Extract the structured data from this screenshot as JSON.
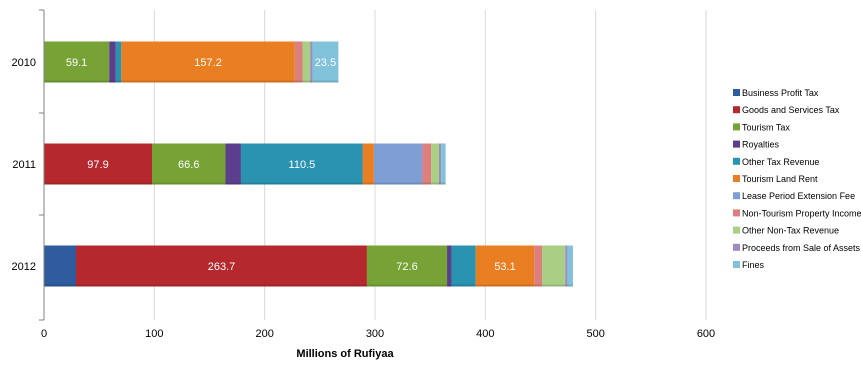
{
  "chart_data": {
    "type": "bar",
    "orientation": "horizontal",
    "stacked": true,
    "xlabel": "Millions of Rufiyaa",
    "xlim": [
      0,
      600
    ],
    "xticks": [
      0,
      100,
      200,
      300,
      400,
      500,
      600
    ],
    "grid": true,
    "legend_position": "right",
    "categories": [
      "2010",
      "2011",
      "2012"
    ],
    "series": [
      {
        "name": "Business Profit Tax",
        "color": "#2e5c9e",
        "values": [
          0,
          0,
          29
        ],
        "labels": [
          "",
          "",
          ""
        ]
      },
      {
        "name": "Goods and Services Tax",
        "color": "#b5292e",
        "values": [
          0,
          97.9,
          263.7
        ],
        "labels": [
          "",
          "97.9",
          "263.7"
        ]
      },
      {
        "name": "Tourism Tax",
        "color": "#76a236",
        "values": [
          59.1,
          66.6,
          72.6
        ],
        "labels": [
          "59.1",
          "66.6",
          "72.6"
        ]
      },
      {
        "name": "Royalties",
        "color": "#5b3f8c",
        "values": [
          6,
          14,
          4
        ],
        "labels": [
          "",
          "",
          ""
        ]
      },
      {
        "name": "Other Tax Revenue",
        "color": "#2a93b0",
        "values": [
          5,
          110.5,
          22
        ],
        "labels": [
          "",
          "110.5",
          ""
        ]
      },
      {
        "name": "Tourism Land Rent",
        "color": "#ea7e22",
        "values": [
          157.2,
          10,
          53.1
        ],
        "labels": [
          "157.2",
          "",
          "53.1"
        ]
      },
      {
        "name": "Lease Period Extension Fee",
        "color": "#7f9fd4",
        "values": [
          0,
          44,
          0
        ],
        "labels": [
          "",
          "",
          ""
        ]
      },
      {
        "name": "Non-Tourism Property Income",
        "color": "#dd7f7d",
        "values": [
          7,
          8,
          7
        ],
        "labels": [
          "",
          "",
          ""
        ]
      },
      {
        "name": "Other Non-Tax Revenue",
        "color": "#a9cf84",
        "values": [
          7,
          7,
          21
        ],
        "labels": [
          "",
          "",
          ""
        ]
      },
      {
        "name": "Proceeds from Sale of Assets",
        "color": "#9c8cc0",
        "values": [
          2,
          2,
          2
        ],
        "labels": [
          "",
          "",
          ""
        ]
      },
      {
        "name": "Fines",
        "color": "#7fc2d9",
        "values": [
          23.5,
          4,
          5
        ],
        "labels": [
          "23.5",
          "",
          ""
        ]
      }
    ]
  }
}
